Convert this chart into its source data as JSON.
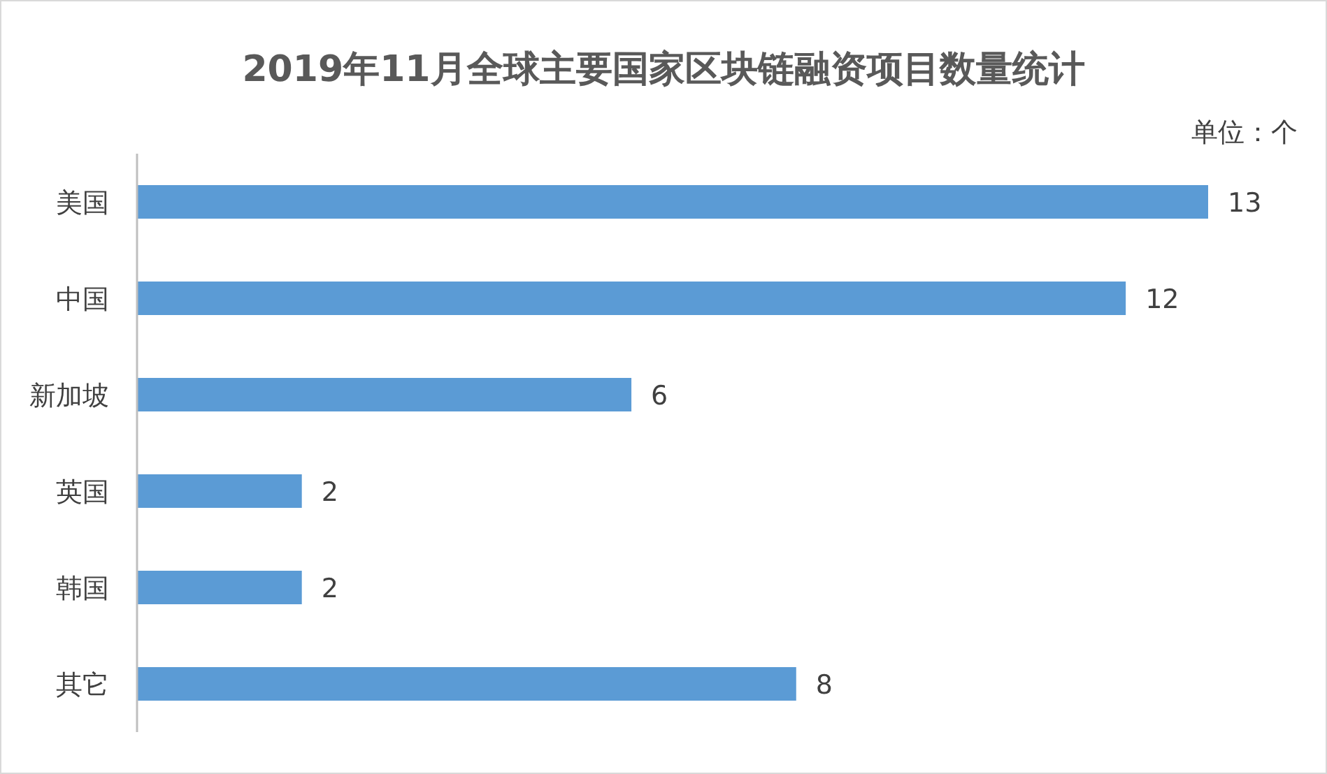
{
  "chart_data": {
    "type": "bar",
    "orientation": "horizontal",
    "title": "2019年11月全球主要国家区块链融资项目数量统计",
    "annotations": [
      "单位：个"
    ],
    "categories": [
      "美国",
      "中国",
      "新加坡",
      "英国",
      "韩国",
      "其它"
    ],
    "values": [
      13,
      12,
      6,
      2,
      2,
      8
    ],
    "color": "#5b9bd5",
    "data_labels": true
  }
}
